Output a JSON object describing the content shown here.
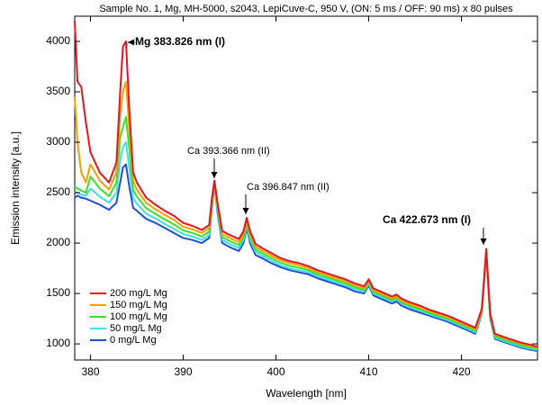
{
  "chart_data": {
    "type": "line",
    "title": "Sample No. 1, Mg, MH-5000, s2043, LepiCuve-C, 950 V, (ON: 5 ms / OFF: 90 ms) x 80 pulses",
    "x_label": "Wavelength [nm]",
    "y_label": "Emission intensity [a.u.]",
    "xlim": [
      378.3,
      428.2
    ],
    "ylim": [
      840,
      4250
    ],
    "xticks": [
      380,
      390,
      400,
      410,
      420
    ],
    "yticks": [
      1000,
      1500,
      2000,
      2500,
      3000,
      3500,
      4000
    ],
    "legend": "lower left",
    "annotations": [
      "Mg 383.826 nm (I)",
      "Ca 393.366 nm (II)",
      "Ca 396.847 nm (II)",
      "Ca 422.673 nm (I)"
    ],
    "x": [
      378.3,
      378.6,
      379,
      379.5,
      380,
      381,
      382,
      382.8,
      383.2,
      383.5,
      383.826,
      384.2,
      384.6,
      385,
      386,
      387,
      388,
      389,
      390,
      391,
      392,
      392.8,
      393.1,
      393.366,
      393.7,
      394.2,
      395,
      396,
      396.5,
      396.847,
      397.2,
      397.8,
      398.5,
      399.5,
      400.5,
      401.5,
      402.5,
      403.5,
      404.5,
      405.5,
      406.5,
      407.5,
      408.5,
      409.5,
      410,
      410.5,
      411.5,
      412.5,
      413,
      413.5,
      414.5,
      415.5,
      416.5,
      417.5,
      418.5,
      419.5,
      420.5,
      421.5,
      422.2,
      422.673,
      423.1,
      423.6,
      424.5,
      425.5,
      426.5,
      427.5,
      428.2
    ],
    "series": [
      {
        "name": "200 mg/L Mg",
        "color": "#e8141c",
        "values": [
          4200,
          3600,
          3550,
          3200,
          2900,
          2700,
          2600,
          2800,
          3500,
          3950,
          4000,
          3300,
          2700,
          2600,
          2450,
          2380,
          2320,
          2270,
          2200,
          2170,
          2130,
          2180,
          2450,
          2620,
          2400,
          2120,
          2080,
          2040,
          2120,
          2250,
          2120,
          1990,
          1950,
          1900,
          1850,
          1820,
          1800,
          1770,
          1730,
          1700,
          1670,
          1640,
          1600,
          1570,
          1640,
          1550,
          1510,
          1470,
          1490,
          1450,
          1410,
          1380,
          1340,
          1310,
          1280,
          1240,
          1200,
          1160,
          1350,
          1940,
          1300,
          1100,
          1070,
          1040,
          1010,
          990,
          970
        ]
      },
      {
        "name": "150 mg/L Mg",
        "color": "#f5a000",
        "values": [
          3450,
          3000,
          2700,
          2600,
          2780,
          2620,
          2530,
          2700,
          3275,
          3500,
          3600,
          3110,
          2610,
          2530,
          2400,
          2335,
          2280,
          2230,
          2160,
          2135,
          2100,
          2150,
          2425,
          2610,
          2375,
          2090,
          2050,
          2010,
          2090,
          2225,
          2090,
          1960,
          1925,
          1875,
          1830,
          1800,
          1780,
          1750,
          1710,
          1680,
          1650,
          1620,
          1580,
          1550,
          1625,
          1530,
          1490,
          1450,
          1470,
          1430,
          1390,
          1360,
          1325,
          1295,
          1265,
          1225,
          1185,
          1145,
          1340,
          1930,
          1290,
          1090,
          1060,
          1030,
          1000,
          980,
          960
        ]
      },
      {
        "name": "100 mg/L Mg",
        "color": "#3de02b",
        "values": [
          2560,
          2540,
          2520,
          2500,
          2660,
          2540,
          2465,
          2600,
          3050,
          3150,
          3250,
          2925,
          2525,
          2460,
          2345,
          2290,
          2235,
          2185,
          2125,
          2100,
          2065,
          2115,
          2400,
          2600,
          2350,
          2060,
          2020,
          1980,
          2060,
          2200,
          2060,
          1935,
          1900,
          1850,
          1805,
          1775,
          1755,
          1730,
          1690,
          1660,
          1630,
          1600,
          1560,
          1535,
          1610,
          1515,
          1475,
          1435,
          1455,
          1415,
          1375,
          1345,
          1310,
          1280,
          1250,
          1210,
          1170,
          1130,
          1325,
          1920,
          1275,
          1075,
          1045,
          1015,
          985,
          965,
          950
        ]
      },
      {
        "name": "50 mg/L Mg",
        "color": "#40e0e0",
        "values": [
          2500,
          2500,
          2480,
          2470,
          2540,
          2460,
          2400,
          2500,
          2825,
          2950,
          3000,
          2740,
          2440,
          2390,
          2290,
          2245,
          2190,
          2140,
          2090,
          2065,
          2030,
          2080,
          2375,
          2590,
          2325,
          2030,
          1990,
          1950,
          2030,
          2175,
          2030,
          1910,
          1875,
          1825,
          1780,
          1750,
          1730,
          1710,
          1670,
          1640,
          1610,
          1580,
          1540,
          1520,
          1595,
          1500,
          1460,
          1420,
          1440,
          1400,
          1360,
          1330,
          1295,
          1265,
          1235,
          1195,
          1155,
          1115,
          1310,
          1910,
          1260,
          1060,
          1030,
          1000,
          970,
          950,
          940
        ]
      },
      {
        "name": "0 mg/L Mg",
        "color": "#1f4fd8",
        "values": [
          2450,
          2470,
          2450,
          2440,
          2420,
          2380,
          2330,
          2400,
          2600,
          2750,
          2780,
          2550,
          2350,
          2320,
          2240,
          2200,
          2150,
          2100,
          2050,
          2030,
          2000,
          2050,
          2350,
          2580,
          2300,
          2000,
          1960,
          1920,
          2000,
          2150,
          2000,
          1880,
          1850,
          1800,
          1760,
          1730,
          1710,
          1690,
          1650,
          1620,
          1590,
          1560,
          1520,
          1500,
          1580,
          1480,
          1440,
          1400,
          1420,
          1380,
          1340,
          1310,
          1280,
          1250,
          1220,
          1180,
          1140,
          1100,
          1300,
          1900,
          1250,
          1050,
          1020,
          990,
          960,
          940,
          930
        ]
      }
    ]
  }
}
